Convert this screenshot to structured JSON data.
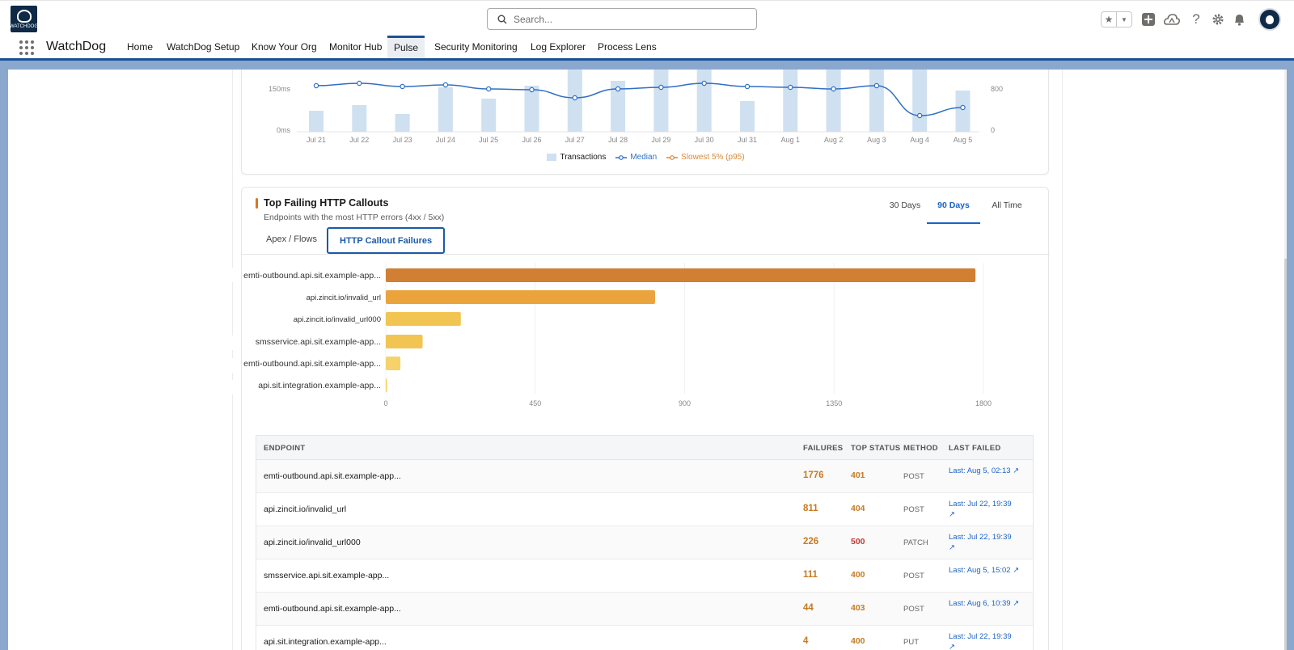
{
  "header": {
    "logo_text": "WATCHDOG",
    "search_placeholder": "Search...",
    "app_name": "WatchDog",
    "nav": [
      "Home",
      "WatchDog Setup",
      "Know Your Org",
      "Monitor Hub",
      "Pulse",
      "Security Monitoring",
      "Log Explorer",
      "Process Lens"
    ],
    "active_nav": "Pulse",
    "icons": [
      "star-icon",
      "chevron-down-icon",
      "add-icon",
      "cloud-icon",
      "help-icon",
      "gear-icon",
      "bell-icon",
      "avatar"
    ]
  },
  "trend_chart": {
    "y_left_ticks": [
      "150ms",
      "0ms"
    ],
    "y_right_ticks": [
      "800",
      "0"
    ],
    "dates": [
      "Jul 21",
      "Jul 22",
      "Jul 23",
      "Jul 24",
      "Jul 25",
      "Jul 26",
      "Jul 27",
      "Jul 28",
      "Jul 29",
      "Jul 30",
      "Jul 31",
      "Aug 1",
      "Aug 2",
      "Aug 3",
      "Aug 4",
      "Aug 5"
    ],
    "legend": {
      "transactions": "Transactions",
      "median": "Median",
      "p95": "Slowest 5% (p95)"
    },
    "colors": {
      "bars": "#cfe0f1",
      "median": "#2f6fc6",
      "p95": "#d8893a"
    }
  },
  "chart_data": {
    "type": "bar",
    "orientation": "horizontal",
    "categories": [
      "emti-outbound.api.sit.example-app...",
      "api.zincit.io/invalid_url",
      "api.zincit.io/invalid_url000",
      "smsservice.api.sit.example-app...",
      "emti-outbound.api.sit.example-app...",
      "api.sit.integration.example-app..."
    ],
    "values": [
      1776,
      811,
      226,
      111,
      44,
      4
    ],
    "xlim": [
      0,
      1800
    ],
    "x_ticks": [
      "0",
      "450",
      "900",
      "1350",
      "1800"
    ],
    "colors": [
      "#d17f33",
      "#eba33e",
      "#f2c451",
      "#f2c451",
      "#f5d36a",
      "#f5d36a"
    ]
  },
  "card": {
    "title": "Top Failing HTTP Callouts",
    "subtitle": "Endpoints with the most HTTP errors (4xx / 5xx)",
    "ranges": [
      "30 Days",
      "90 Days",
      "All Time"
    ],
    "active_range": "90 Days",
    "tabs": [
      "Apex / Flows",
      "HTTP Callout Failures"
    ],
    "active_tab": "HTTP Callout Failures"
  },
  "table": {
    "headers": {
      "endpoint": "ENDPOINT",
      "failures": "FAILURES",
      "top_status": "TOP STATUS",
      "method": "METHOD",
      "last_failed": "LAST FAILED"
    },
    "rows": [
      {
        "endpoint": "emti-outbound.api.sit.example-app...",
        "failures": "1776",
        "status": "401",
        "method": "POST",
        "last": "Last: Aug 5, 02:13 ↗"
      },
      {
        "endpoint": "api.zincit.io/invalid_url",
        "failures": "811",
        "status": "404",
        "method": "POST",
        "last": "Last: Jul 22, 19:39 ↗"
      },
      {
        "endpoint": "api.zincit.io/invalid_url000",
        "failures": "226",
        "status": "500",
        "method": "PATCH",
        "last": "Last: Jul 22, 19:39 ↗"
      },
      {
        "endpoint": "smsservice.api.sit.example-app...",
        "failures": "111",
        "status": "400",
        "method": "POST",
        "last": "Last: Aug 5, 15:02 ↗"
      },
      {
        "endpoint": "emti-outbound.api.sit.example-app...",
        "failures": "44",
        "status": "403",
        "method": "POST",
        "last": "Last: Aug 6, 10:39 ↗"
      },
      {
        "endpoint": "api.sit.integration.example-app...",
        "failures": "4",
        "status": "400",
        "method": "PUT",
        "last": "Last: Jul 22, 19:39 ↗"
      }
    ],
    "status_colors": {
      "4xx": "#c77a22",
      "5xx": "#c23934"
    }
  }
}
